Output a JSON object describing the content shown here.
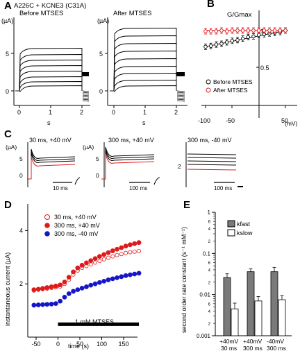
{
  "panels": {
    "A": {
      "label": "A",
      "title": "A226C + KCNE3 (C31A)",
      "left": {
        "subtitle": "Before MTSES",
        "ylabel": "(µA)",
        "yticks": [
          "5",
          "0"
        ],
        "xticks": [
          "0",
          "1",
          "2"
        ],
        "xlabel": "s"
      },
      "right": {
        "subtitle": "After MTSES",
        "ylabel": "(µA)",
        "yticks": [
          "5",
          "0"
        ],
        "xticks": [
          "0",
          "1",
          "2"
        ],
        "xlabel": "s"
      }
    },
    "B": {
      "label": "B",
      "ylabel": "G/Gmax",
      "yticks": [
        "1",
        "0.5"
      ],
      "xticks": [
        "-100",
        "-50",
        "50"
      ],
      "xunit": "(mV)",
      "legend": [
        "Before MTSES",
        "After MTSES"
      ]
    },
    "C": {
      "label": "C",
      "ylabel": "(µA)",
      "sub1": {
        "title": "30 ms, +40 mV",
        "scale": "10 ms",
        "yticks": [
          "5",
          "0"
        ]
      },
      "sub2": {
        "title": "300 ms, +40 mV",
        "scale": "100 ms",
        "yticks": [
          "5",
          "0"
        ]
      },
      "sub3": {
        "title": "300 ms, -40 mV",
        "scale": "100 ms",
        "yticks": [
          "2"
        ]
      }
    },
    "D": {
      "label": "D",
      "ylabel": "instantaneous current (µA)",
      "xlabel": "time (s)",
      "bar_label": "1 mM MTSES",
      "legend": [
        "30 ms, +40 mV",
        "300 ms, +40 mV",
        "300 ms, -40 mV"
      ]
    },
    "E": {
      "label": "E",
      "ylabel": "second order rate constant (s⁻¹ mM⁻¹)",
      "legend": [
        "kfast",
        "kslow"
      ],
      "categories": [
        [
          "+40mV",
          "30 ms"
        ],
        [
          "+40mV",
          "300 ms"
        ],
        [
          "-40mV",
          "300 ms"
        ]
      ]
    }
  },
  "colors": {
    "red": "#e0191b",
    "blue": "#1616c8",
    "gray": "#7a7a7a"
  },
  "chart_data": [
    {
      "type": "line",
      "panel": "B",
      "xlim": [
        -100,
        60
      ],
      "ylim": [
        0.3,
        1.1
      ],
      "series": [
        {
          "name": "Before MTSES",
          "x": [
            -100,
            -90,
            -80,
            -70,
            -60,
            -50,
            -40,
            -30,
            -20,
            -10,
            0,
            10,
            20,
            30,
            40,
            50
          ],
          "y": [
            0.78,
            0.79,
            0.81,
            0.82,
            0.84,
            0.86,
            0.87,
            0.89,
            0.91,
            0.92,
            0.94,
            0.95,
            0.96,
            0.97,
            0.98,
            1.0
          ]
        },
        {
          "name": "After MTSES",
          "x": [
            -100,
            -90,
            -80,
            -70,
            -60,
            -50,
            -40,
            -30,
            -20,
            -10,
            0,
            10,
            20,
            30,
            40,
            50
          ],
          "y": [
            0.99,
            0.99,
            0.99,
            1.0,
            0.99,
            1.0,
            1.0,
            1.0,
            1.0,
            1.0,
            1.0,
            1.0,
            1.0,
            1.0,
            1.0,
            1.0
          ]
        }
      ]
    },
    {
      "type": "scatter",
      "panel": "D",
      "xlim": [
        -60,
        190
      ],
      "ylim": [
        0,
        5
      ],
      "xticks": [
        -50,
        0,
        50,
        100,
        150
      ],
      "yticks": [
        2,
        4
      ],
      "bar_x": [
        0,
        185
      ],
      "series": [
        {
          "name": "30 ms, +40 mV",
          "x": [
            -55,
            -45,
            -35,
            -25,
            -15,
            -5,
            5,
            15,
            25,
            35,
            45,
            55,
            65,
            75,
            85,
            95,
            105,
            115,
            125,
            135,
            145,
            155,
            165,
            175,
            185
          ],
          "y": [
            1.75,
            1.78,
            1.8,
            1.82,
            1.85,
            1.87,
            1.9,
            2.0,
            2.15,
            2.35,
            2.5,
            2.6,
            2.67,
            2.73,
            2.8,
            2.86,
            2.92,
            2.98,
            3.03,
            3.08,
            3.12,
            3.16,
            3.19,
            3.21,
            3.23
          ]
        },
        {
          "name": "300 ms, +40 mV",
          "x": [
            -55,
            -45,
            -35,
            -25,
            -15,
            -5,
            5,
            15,
            25,
            35,
            45,
            55,
            65,
            75,
            85,
            95,
            105,
            115,
            125,
            135,
            145,
            155,
            165,
            175,
            185
          ],
          "y": [
            1.78,
            1.8,
            1.83,
            1.86,
            1.89,
            1.92,
            1.96,
            2.07,
            2.25,
            2.45,
            2.6,
            2.7,
            2.79,
            2.87,
            2.95,
            3.03,
            3.1,
            3.17,
            3.24,
            3.3,
            3.36,
            3.42,
            3.47,
            3.51,
            3.55
          ]
        },
        {
          "name": "300 ms, -40 mV",
          "x": [
            -55,
            -45,
            -35,
            -25,
            -15,
            -5,
            5,
            15,
            25,
            35,
            45,
            55,
            65,
            75,
            85,
            95,
            105,
            115,
            125,
            135,
            145,
            155,
            165,
            175,
            185
          ],
          "y": [
            1.2,
            1.21,
            1.22,
            1.23,
            1.24,
            1.26,
            1.35,
            1.5,
            1.63,
            1.72,
            1.78,
            1.84,
            1.89,
            1.95,
            2.0,
            2.05,
            2.1,
            2.15,
            2.19,
            2.23,
            2.27,
            2.31,
            2.34,
            2.37,
            2.4
          ]
        }
      ]
    },
    {
      "type": "bar",
      "panel": "E",
      "scale": "log",
      "ylim": [
        0.001,
        1
      ],
      "yticks": [
        "0.001",
        "0.01",
        "0.1",
        "1"
      ],
      "minor_labels": [
        "2",
        "4",
        "6",
        "2",
        "4",
        "6",
        "2",
        "4",
        "6"
      ],
      "categories": [
        "+40mV 30 ms",
        "+40mV 300 ms",
        "-40mV 300 ms"
      ],
      "series": [
        {
          "name": "kfast",
          "values": [
            0.026,
            0.036,
            0.036
          ],
          "errors": [
            0.006,
            0.006,
            0.01
          ]
        },
        {
          "name": "kslow",
          "values": [
            0.0045,
            0.007,
            0.0075
          ],
          "errors": [
            0.0017,
            0.002,
            0.002
          ]
        }
      ]
    }
  ]
}
